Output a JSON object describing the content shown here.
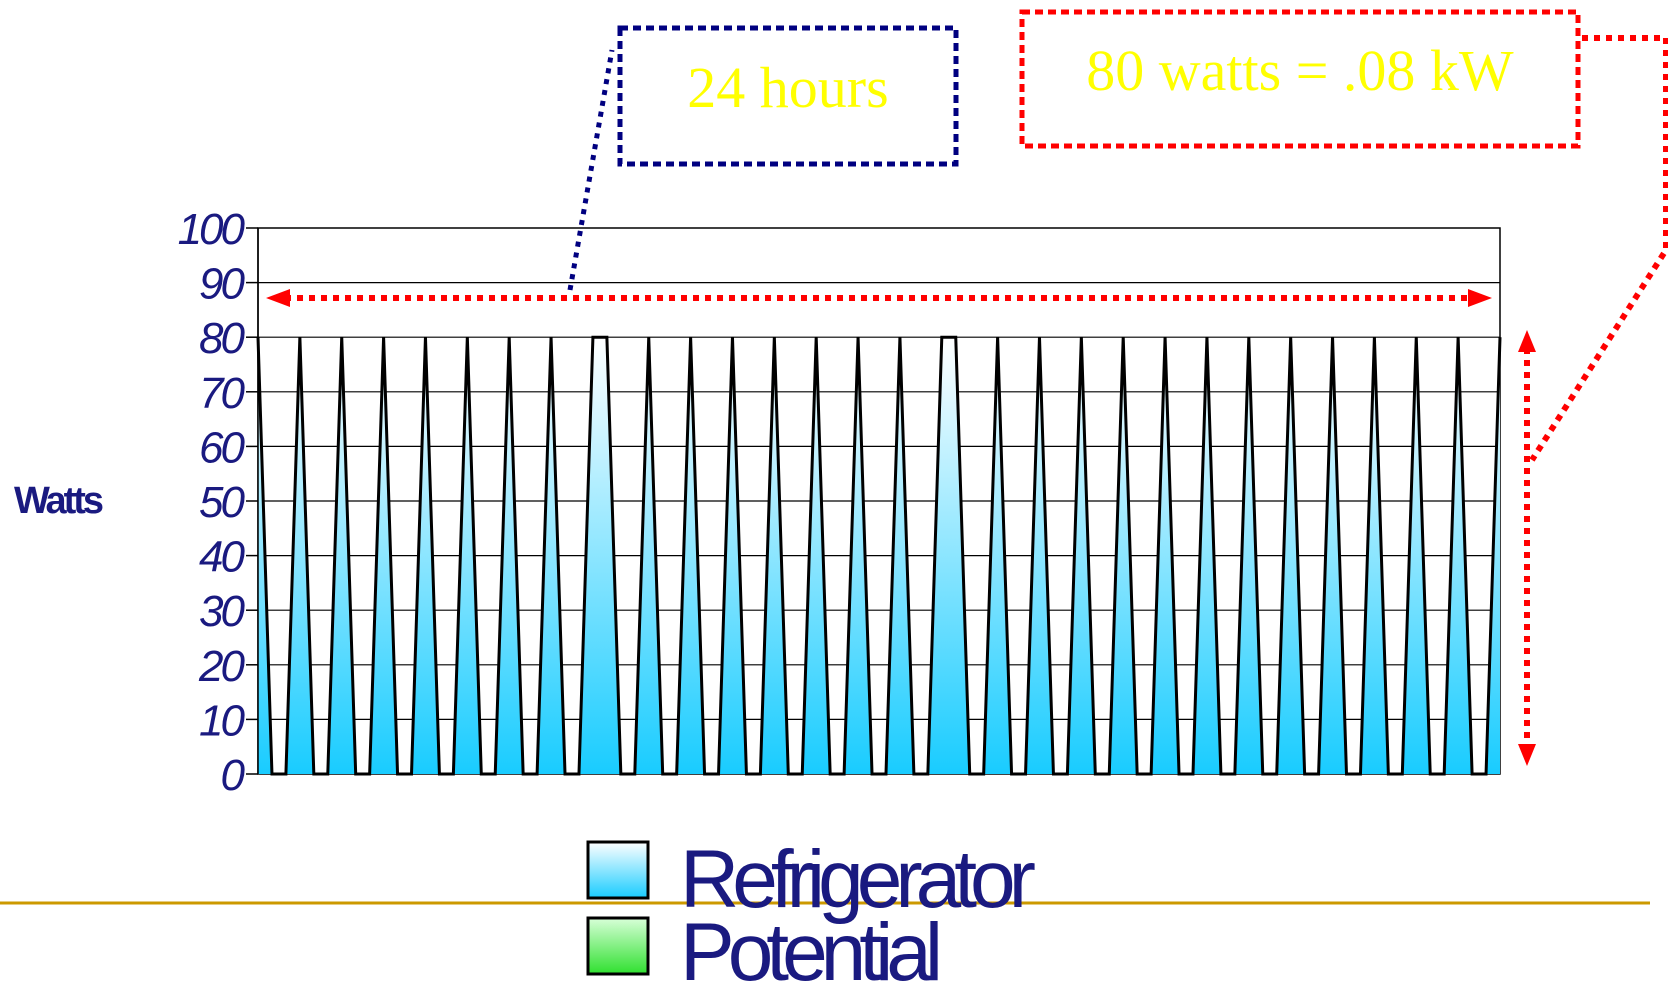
{
  "chart_data": {
    "type": "area",
    "ylabel": "Watts",
    "xlabel": "",
    "ylim": [
      0,
      100
    ],
    "yticks": [
      "0",
      "10",
      "20",
      "30",
      "40",
      "50",
      "60",
      "70",
      "80",
      "90",
      "100"
    ],
    "grid": true,
    "legend_position": "bottom-center",
    "series": [
      {
        "name": "Refrigerator",
        "color_top": "#ffffff",
        "color_bottom": "#19ccff",
        "values": [
          80,
          0,
          0,
          80,
          0,
          0,
          80,
          0,
          0,
          80,
          0,
          0,
          80,
          0,
          0,
          80,
          0,
          0,
          80,
          0,
          0,
          80,
          0,
          0,
          80,
          80,
          0,
          0,
          80,
          0,
          0,
          80,
          0,
          0,
          80,
          0,
          0,
          80,
          0,
          0,
          80,
          0,
          0,
          80,
          0,
          0,
          80,
          0,
          0,
          80,
          80,
          0,
          0,
          80,
          0,
          0,
          80,
          0,
          0,
          80,
          0,
          0,
          80,
          0,
          0,
          80,
          0,
          0,
          80,
          0,
          0,
          80,
          0,
          0,
          80,
          0,
          0,
          80,
          0,
          0,
          80,
          0,
          0,
          80,
          0,
          0,
          80,
          0,
          0,
          80
        ]
      },
      {
        "name": "Potential",
        "color_top": "#d8ffd8",
        "color_bottom": "#2fe02f",
        "values": []
      }
    ],
    "annotations": [
      {
        "text": "24 hours",
        "color": "#000080"
      },
      {
        "text": "80 watts = .08 kW",
        "color": "#ff0000"
      }
    ]
  },
  "divider_color": "#cc9900"
}
